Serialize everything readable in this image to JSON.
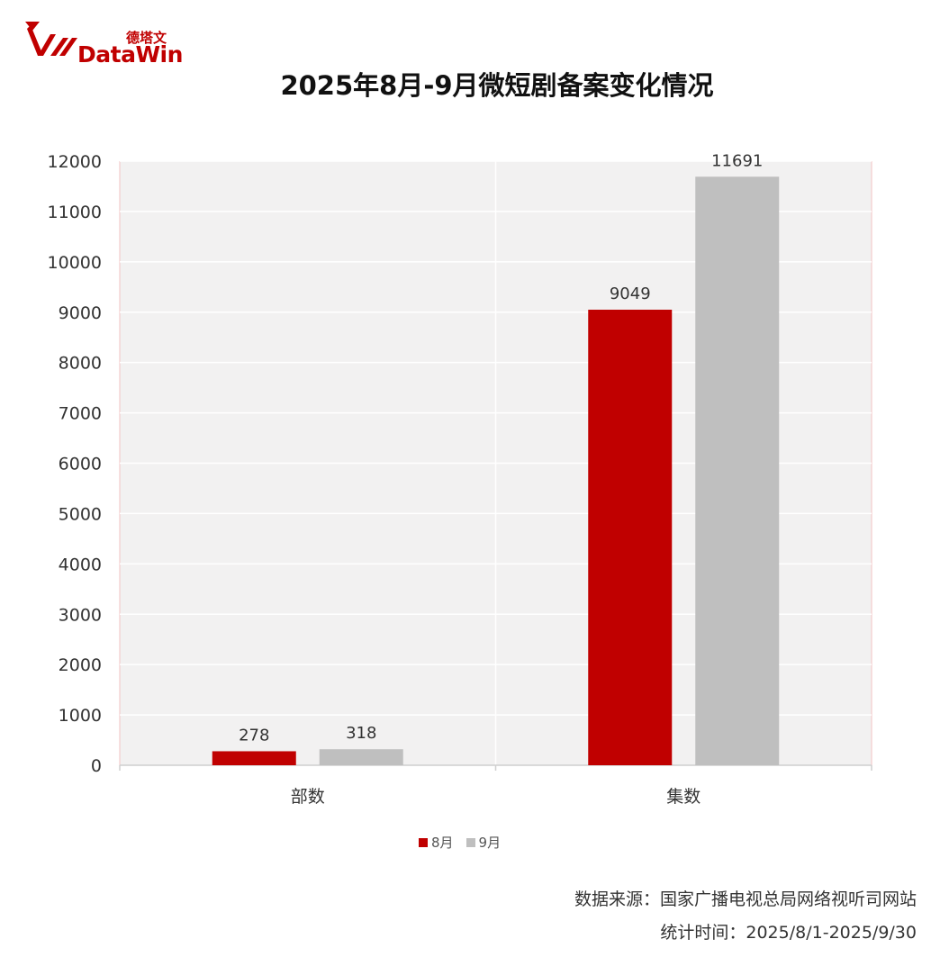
{
  "logo": {
    "cn": "德塔文",
    "en": "DataWin"
  },
  "title": "2025年8月-9月微短剧备案变化情况",
  "chart_data": {
    "type": "bar",
    "title": "2025年8月-9月微短剧备案变化情况",
    "categories": [
      "部数",
      "集数"
    ],
    "series": [
      {
        "name": "8月",
        "values": [
          278,
          9049
        ],
        "color": "#c00000"
      },
      {
        "name": "9月",
        "values": [
          318,
          11691
        ],
        "color": "#bfbfbf"
      }
    ],
    "ylim": [
      0,
      12000
    ],
    "yticks": [
      0,
      1000,
      2000,
      3000,
      4000,
      5000,
      6000,
      7000,
      8000,
      9000,
      10000,
      11000,
      12000
    ],
    "grid": true,
    "legend": "bottom",
    "data_labels": true
  },
  "footer": {
    "source": "数据来源：国家广播电视总局网络视听司网站",
    "period": "统计时间：2025/8/1-2025/9/30"
  }
}
